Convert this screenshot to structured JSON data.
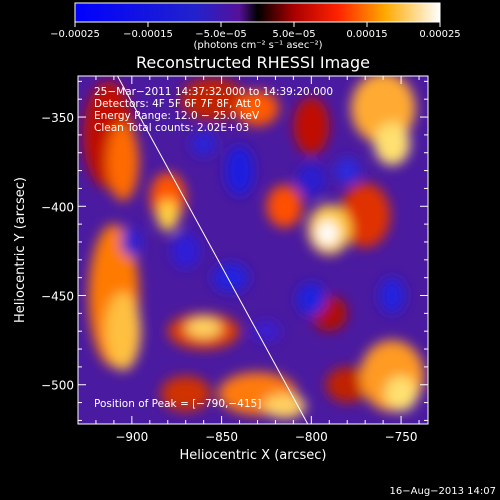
{
  "chart_data": {
    "type": "heatmap",
    "title": "Reconstructed RHESSI Image",
    "xlabel": "Heliocentric X (arcsec)",
    "ylabel": "Heliocentric Y (arcsec)",
    "xlim": [
      -930,
      -735
    ],
    "ylim": [
      -522,
      -327
    ],
    "x_ticks": [
      {
        "value": -900,
        "label": "−900"
      },
      {
        "value": -850,
        "label": "−850"
      },
      {
        "value": -800,
        "label": "−800"
      },
      {
        "value": -750,
        "label": "−750"
      }
    ],
    "y_ticks": [
      {
        "value": -350,
        "label": "−350"
      },
      {
        "value": -400,
        "label": "−400"
      },
      {
        "value": -450,
        "label": "−450"
      },
      {
        "value": -500,
        "label": "−500"
      }
    ],
    "colorbar": {
      "range": [
        -0.00025,
        0.00025
      ],
      "ticks": [
        {
          "value": -0.00025,
          "label": "−0.00025"
        },
        {
          "value": -0.00015,
          "label": "−0.00015"
        },
        {
          "value": -5e-05,
          "label": "−5.0e−05"
        },
        {
          "value": 5e-05,
          "label": "5.0e−05"
        },
        {
          "value": 0.00015,
          "label": "0.00015"
        },
        {
          "value": 0.00025,
          "label": "0.00025"
        }
      ],
      "unit_label": "(photons cm⁻² s⁻¹ asec⁻²)"
    },
    "annotations": [
      "25−Mar−2011 14:37:32.000 to 14:39:20.000",
      "Detectors: 4F 5F 6F 7F 8F, Att 0",
      "Energy Range: 12.0 − 25.0 keV",
      "Clean    Total counts: 2.02E+03"
    ],
    "peak_label": "Position of Peak = [−790,−415]",
    "peak_position": [
      -790,
      -415
    ],
    "limb_line": [
      [
        -908,
        -327
      ],
      [
        -802,
        -522
      ]
    ],
    "grid": false
  },
  "footer_timestamp": "16−Aug−2013 14:07"
}
